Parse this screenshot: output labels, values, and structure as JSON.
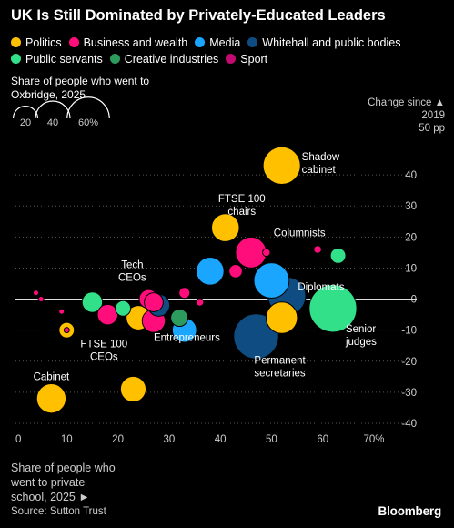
{
  "title": "UK Is Still Dominated by Privately-Educated Leaders",
  "legend": [
    {
      "label": "Politics",
      "color": "#ffc000"
    },
    {
      "label": "Business and wealth",
      "color": "#ff0d7b"
    },
    {
      "label": "Media",
      "color": "#1aa5ff"
    },
    {
      "label": "Whitehall and public bodies",
      "color": "#0f4c81"
    },
    {
      "label": "Public servants",
      "color": "#33e08a"
    },
    {
      "label": "Creative industries",
      "color": "#2e9b5e"
    },
    {
      "label": "Sport",
      "color": "#c20a70"
    }
  ],
  "size_legend": {
    "title": "Share of people who went to\nOxbridge, 2025",
    "items": [
      "20",
      "40",
      "60%"
    ]
  },
  "y_axis_title": "Change since ▲\n2019\n50 pp",
  "x_axis_title": "Share of people who\nwent to private\nschool, 2025 ►",
  "source": "Source: Sutton Trust",
  "brand": "Bloomberg",
  "chart_data": {
    "type": "scatter",
    "xlim": [
      0,
      70
    ],
    "ylim": [
      -40,
      50
    ],
    "x_ticks": [
      "0",
      "10",
      "20",
      "30",
      "40",
      "50",
      "60",
      "70%"
    ],
    "y_ticks": [
      "40",
      "30",
      "20",
      "10",
      "0",
      "-10",
      "-20",
      "-30",
      "-40"
    ],
    "y_tick_values": [
      40,
      30,
      20,
      10,
      0,
      -10,
      -20,
      -30,
      -40
    ],
    "grid": "horizontal",
    "zero_line": true,
    "points": [
      {
        "label": "Shadow cabinet",
        "category": "Politics",
        "x": 52,
        "y": 43,
        "oxbridge": 47
      },
      {
        "label": "FTSE 100 chairs",
        "category": "Politics",
        "x": 41,
        "y": 23,
        "oxbridge": 26
      },
      {
        "label": "",
        "category": "Business and wealth",
        "x": 46,
        "y": 15,
        "oxbridge": 32
      },
      {
        "label": "Columnists",
        "category": "Business and wealth",
        "x": 49,
        "y": 15,
        "oxbridge": 2
      },
      {
        "label": "",
        "category": "Business and wealth",
        "x": 59,
        "y": 16,
        "oxbridge": 2
      },
      {
        "label": "",
        "category": "Public servants",
        "x": 63,
        "y": 14,
        "oxbridge": 8
      },
      {
        "label": "",
        "category": "Media",
        "x": 38,
        "y": 9,
        "oxbridge": 26
      },
      {
        "label": "",
        "category": "Business and wealth",
        "x": 43,
        "y": 9,
        "oxbridge": 6
      },
      {
        "label": "",
        "category": "Media",
        "x": 50,
        "y": 6,
        "oxbridge": 42
      },
      {
        "label": "Diplomats",
        "category": "Whitehall and public bodies",
        "x": 53,
        "y": 1,
        "oxbridge": 48
      },
      {
        "label": "Senior judges",
        "category": "Public servants",
        "x": 62,
        "y": -3,
        "oxbridge": 76
      },
      {
        "label": "",
        "category": "Politics",
        "x": 52,
        "y": -6,
        "oxbridge": 33
      },
      {
        "label": "Permanent secretaries",
        "category": "Whitehall and public bodies",
        "x": 47,
        "y": -12,
        "oxbridge": 68
      },
      {
        "label": "",
        "category": "Business and wealth",
        "x": 36,
        "y": -1,
        "oxbridge": 2
      },
      {
        "label": "",
        "category": "Business and wealth",
        "x": 33,
        "y": 2,
        "oxbridge": 4
      },
      {
        "label": "Tech CEOs",
        "category": "Business and wealth",
        "x": 26,
        "y": 0,
        "oxbridge": 12
      },
      {
        "label": "",
        "category": "Business and wealth",
        "x": 27,
        "y": -1,
        "oxbridge": 12
      },
      {
        "label": "",
        "category": "Whitehall and public bodies",
        "x": 28,
        "y": -2,
        "oxbridge": 16
      },
      {
        "label": "",
        "category": "Politics",
        "x": 24,
        "y": -6,
        "oxbridge": 20
      },
      {
        "label": "Entrepreneurs",
        "category": "Business and wealth",
        "x": 27,
        "y": -7,
        "oxbridge": 18
      },
      {
        "label": "",
        "category": "Creative industries",
        "x": 32,
        "y": -6,
        "oxbridge": 10
      },
      {
        "label": "",
        "category": "Media",
        "x": 33,
        "y": -10,
        "oxbridge": 20
      },
      {
        "label": "",
        "category": "Public servants",
        "x": 15,
        "y": -1,
        "oxbridge": 14
      },
      {
        "label": "",
        "category": "Public servants",
        "x": 21,
        "y": -3,
        "oxbridge": 8
      },
      {
        "label": "FTSE 100 CEOs",
        "category": "Business and wealth",
        "x": 18,
        "y": -5,
        "oxbridge": 14
      },
      {
        "label": "",
        "category": "Politics",
        "x": 10,
        "y": -10,
        "oxbridge": 8
      },
      {
        "label": "",
        "category": "Business and wealth",
        "x": 4,
        "y": 2,
        "oxbridge": 1
      },
      {
        "label": "",
        "category": "Business and wealth",
        "x": 5,
        "y": 0,
        "oxbridge": 1
      },
      {
        "label": "",
        "category": "Business and wealth",
        "x": 9,
        "y": -4,
        "oxbridge": 1
      },
      {
        "label": "",
        "category": "Business and wealth",
        "x": 10,
        "y": -10,
        "oxbridge": 1
      },
      {
        "label": "Cabinet",
        "category": "Politics",
        "x": 7,
        "y": -32,
        "oxbridge": 29
      },
      {
        "label": "",
        "category": "Politics",
        "x": 23,
        "y": -29,
        "oxbridge": 22
      }
    ]
  }
}
